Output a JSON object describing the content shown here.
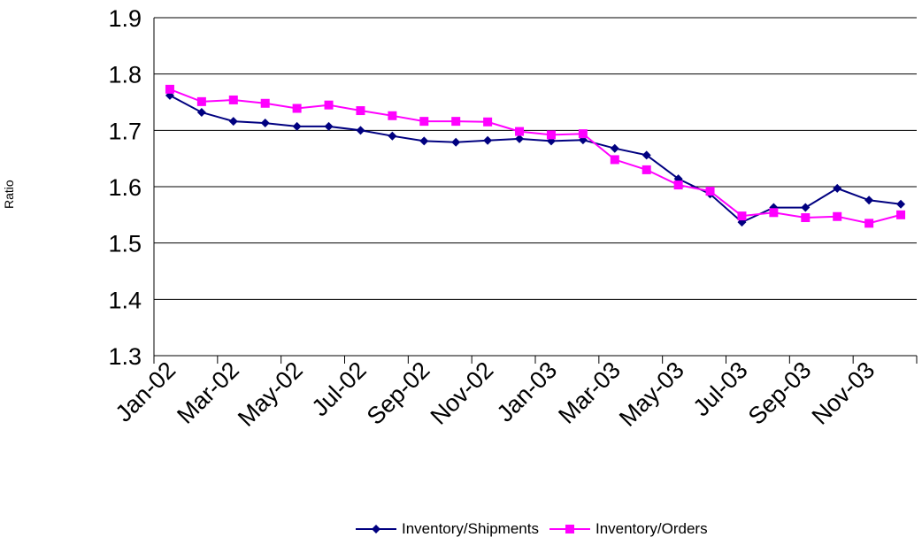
{
  "chart_data": {
    "type": "line",
    "title": "",
    "xlabel": "",
    "ylabel": "Ratio",
    "ylim": [
      1.3,
      1.9
    ],
    "yticks": [
      "1.3",
      "1.4",
      "1.5",
      "1.6",
      "1.7",
      "1.8",
      "1.9"
    ],
    "grid": true,
    "legend": "bottom",
    "x": [
      "Jan-02",
      "Feb-02",
      "Mar-02",
      "Apr-02",
      "May-02",
      "Jun-02",
      "Jul-02",
      "Aug-02",
      "Sep-02",
      "Oct-02",
      "Nov-02",
      "Dec-02",
      "Jan-03",
      "Feb-03",
      "Mar-03",
      "Apr-03",
      "May-03",
      "Jun-03",
      "Jul-03",
      "Aug-03",
      "Sep-03",
      "Oct-03",
      "Nov-03",
      "Dec-03"
    ],
    "x_tick_labels": [
      "Jan-02",
      "Mar-02",
      "May-02",
      "Jul-02",
      "Sep-02",
      "Nov-02",
      "Jan-03",
      "Mar-03",
      "May-03",
      "Jul-03",
      "Sep-03",
      "Nov-03"
    ],
    "series": [
      {
        "name": "Inventory/Shipments",
        "color": "#000080",
        "marker": "diamond",
        "values": [
          1.762,
          1.732,
          1.716,
          1.713,
          1.707,
          1.707,
          1.7,
          1.69,
          1.681,
          1.679,
          1.682,
          1.685,
          1.681,
          1.683,
          1.668,
          1.656,
          1.614,
          1.587,
          1.537,
          1.563,
          1.563,
          1.597,
          1.576,
          1.569
        ]
      },
      {
        "name": "Inventory/Orders",
        "color": "#ff00ff",
        "marker": "square",
        "values": [
          1.773,
          1.751,
          1.754,
          1.748,
          1.739,
          1.745,
          1.735,
          1.726,
          1.716,
          1.716,
          1.715,
          1.698,
          1.692,
          1.694,
          1.648,
          1.63,
          1.603,
          1.592,
          1.548,
          1.554,
          1.545,
          1.547,
          1.535,
          1.55
        ]
      }
    ]
  }
}
